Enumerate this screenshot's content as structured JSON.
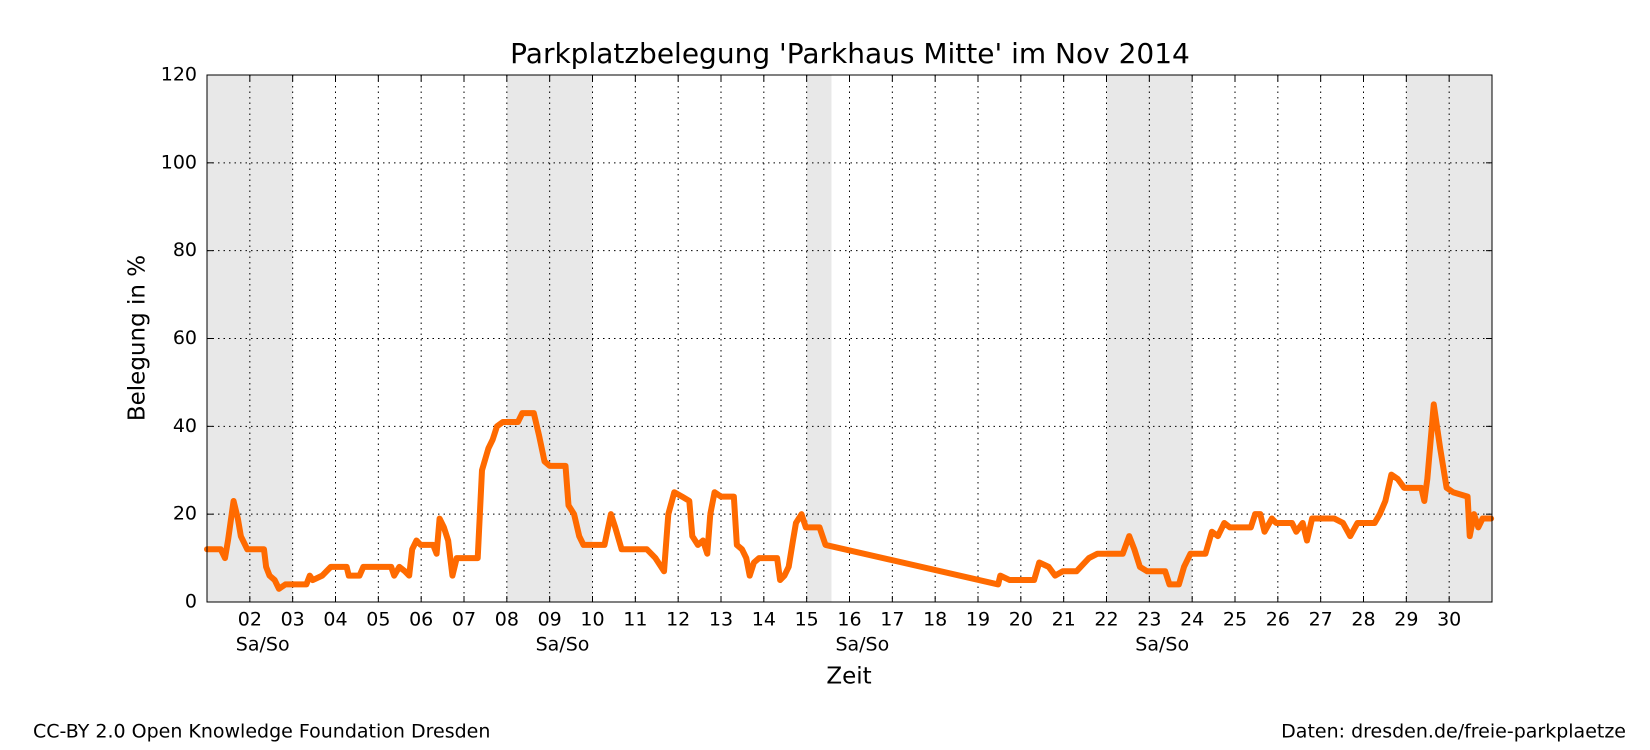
{
  "chart_data": {
    "type": "line",
    "title": "Parkplatzbelegung 'Parkhaus Mitte' im Nov 2014",
    "xlabel": "Zeit",
    "ylabel": "Belegung in %",
    "xlim": [
      1,
      31
    ],
    "ylim": [
      0,
      120
    ],
    "xticks": [
      {
        "value": 2,
        "label": "02"
      },
      {
        "value": 3,
        "label": "03"
      },
      {
        "value": 4,
        "label": "04"
      },
      {
        "value": 5,
        "label": "05"
      },
      {
        "value": 6,
        "label": "06"
      },
      {
        "value": 7,
        "label": "07"
      },
      {
        "value": 8,
        "label": "08"
      },
      {
        "value": 9,
        "label": "09"
      },
      10,
      11,
      12,
      13,
      14,
      15,
      16,
      17,
      18,
      19,
      20,
      21,
      22,
      23,
      24,
      25,
      26,
      27,
      28,
      29,
      30
    ],
    "yticks": [
      0,
      20,
      40,
      60,
      80,
      100,
      120
    ],
    "grid": true,
    "weekend_spans": [
      [
        1,
        3
      ],
      [
        8,
        10
      ],
      [
        15,
        15.58
      ],
      [
        22,
        24
      ],
      [
        29,
        31
      ]
    ],
    "weekend_labels": [
      {
        "text": "Sa/So",
        "x": 2.3
      },
      {
        "text": "Sa/So",
        "x": 9.3
      },
      {
        "text": "Sa/So",
        "x": 16.3
      },
      {
        "text": "Sa/So",
        "x": 23.3
      }
    ],
    "footer_left": "CC-BY 2.0 Open Knowledge Foundation Dresden",
    "footer_right": "Daten: dresden.de/freie-parkplaetze",
    "series": [
      {
        "color": "#ff6a00",
        "x": [
          1.0,
          1.32,
          1.42,
          1.49,
          1.62,
          1.72,
          1.79,
          1.94,
          2.33,
          2.38,
          2.46,
          2.58,
          2.68,
          2.83,
          3.32,
          3.4,
          3.47,
          3.69,
          3.89,
          4.26,
          4.31,
          4.56,
          4.65,
          5.3,
          5.37,
          5.49,
          5.62,
          5.72,
          5.79,
          5.89,
          5.99,
          6.28,
          6.36,
          6.43,
          6.53,
          6.63,
          6.73,
          6.83,
          7.32,
          7.42,
          7.57,
          7.67,
          7.77,
          7.91,
          8.26,
          8.36,
          8.63,
          8.75,
          8.88,
          9.0,
          9.37,
          9.44,
          9.57,
          9.69,
          9.79,
          9.94,
          10.28,
          10.43,
          10.53,
          10.68,
          11.27,
          11.47,
          11.67,
          11.77,
          11.91,
          12.09,
          12.26,
          12.33,
          12.46,
          12.58,
          12.68,
          12.75,
          12.85,
          13.0,
          13.3,
          13.37,
          13.49,
          13.59,
          13.67,
          13.77,
          13.89,
          14.31,
          14.38,
          14.48,
          14.58,
          14.68,
          14.75,
          14.88,
          14.98,
          15.3,
          15.44,
          19.47,
          19.52,
          19.74,
          20.31,
          20.43,
          20.65,
          20.8,
          20.98,
          21.3,
          21.59,
          21.79,
          22.38,
          22.53,
          22.65,
          22.78,
          22.95,
          23.37,
          23.47,
          23.69,
          23.81,
          23.96,
          24.31,
          24.46,
          24.6,
          24.75,
          24.88,
          25.37,
          25.47,
          25.59,
          25.69,
          25.86,
          25.96,
          26.33,
          26.43,
          26.58,
          26.68,
          26.8,
          27.32,
          27.52,
          27.69,
          27.86,
          28.26,
          28.38,
          28.51,
          28.65,
          28.8,
          28.95,
          29.35,
          29.42,
          29.49,
          29.64,
          29.79,
          29.94,
          30.09,
          30.43,
          30.48,
          30.58,
          30.68,
          30.78,
          30.98
        ],
        "values": [
          12,
          12,
          10,
          14,
          23,
          19,
          15,
          12,
          12,
          8,
          6,
          5,
          3,
          4,
          4,
          6,
          5,
          6,
          8,
          8,
          6,
          6,
          8,
          8,
          6,
          8,
          7,
          6,
          12,
          14,
          13,
          13,
          11,
          19,
          17,
          14,
          6,
          10,
          10,
          30,
          35,
          37,
          40,
          41,
          41,
          43,
          43,
          38,
          32,
          31,
          31,
          22,
          20,
          15,
          13,
          13,
          13,
          20,
          17,
          12,
          12,
          10,
          7,
          20,
          25,
          24,
          23,
          15,
          13,
          14,
          11,
          20,
          25,
          24,
          24,
          13,
          12,
          10,
          6,
          9,
          10,
          10,
          5,
          6,
          8,
          14,
          18,
          20,
          17,
          17,
          13,
          4,
          6,
          5,
          5,
          9,
          8,
          6,
          7,
          7,
          10,
          11,
          11,
          15,
          12,
          8,
          7,
          7,
          4,
          4,
          8,
          11,
          11,
          16,
          15,
          18,
          17,
          17,
          20,
          20,
          16,
          19,
          18,
          18,
          16,
          18,
          14,
          19,
          19,
          18,
          15,
          18,
          18,
          20,
          23,
          29,
          28,
          26,
          26,
          23,
          28,
          45,
          35,
          26,
          25,
          24,
          15,
          20,
          17,
          19,
          19
        ]
      }
    ]
  }
}
